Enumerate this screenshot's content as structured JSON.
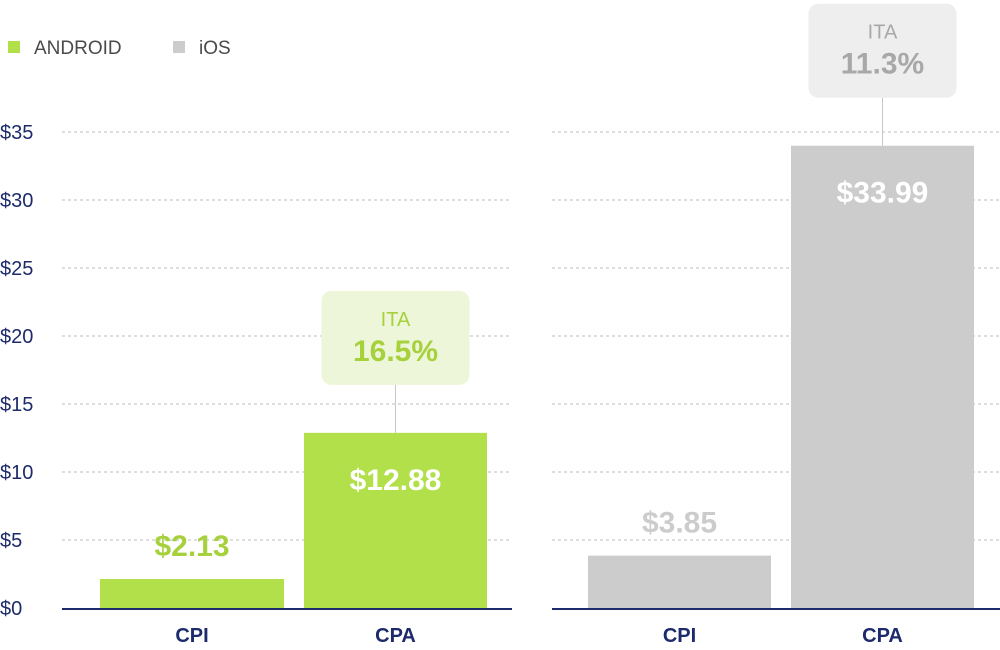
{
  "legend": [
    {
      "label": "ANDROID",
      "color": "#b2e04a"
    },
    {
      "label": "iOS",
      "color": "#cccccc"
    }
  ],
  "chart_data": {
    "type": "bar",
    "ylim": [
      0,
      35
    ],
    "yticks": [
      0,
      5,
      10,
      15,
      20,
      25,
      30,
      35
    ],
    "ytick_labels": [
      "$0",
      "$5",
      "$10",
      "$15",
      "$20",
      "$25",
      "$30",
      "$35"
    ],
    "panels": [
      {
        "series": "ANDROID",
        "color": "#b2e04a",
        "categories": [
          "CPI",
          "CPA"
        ],
        "values": [
          2.13,
          12.88
        ],
        "value_labels": [
          "$2.13",
          "$12.88"
        ],
        "label_colors": [
          "#a6d13c",
          "#ffffff"
        ],
        "annotation": {
          "title": "ITA",
          "value": "16.5%",
          "text_color": "#a6d13c",
          "box_color": "#eef6d9"
        }
      },
      {
        "series": "iOS",
        "color": "#cccccc",
        "categories": [
          "CPI",
          "CPA"
        ],
        "values": [
          3.85,
          33.99
        ],
        "value_labels": [
          "$3.85",
          "$33.99"
        ],
        "label_colors": [
          "#cccccc",
          "#ffffff"
        ],
        "annotation": {
          "title": "ITA",
          "value": "11.3%",
          "text_color": "#a8a8a8",
          "box_color": "#eeeeee"
        }
      }
    ]
  }
}
